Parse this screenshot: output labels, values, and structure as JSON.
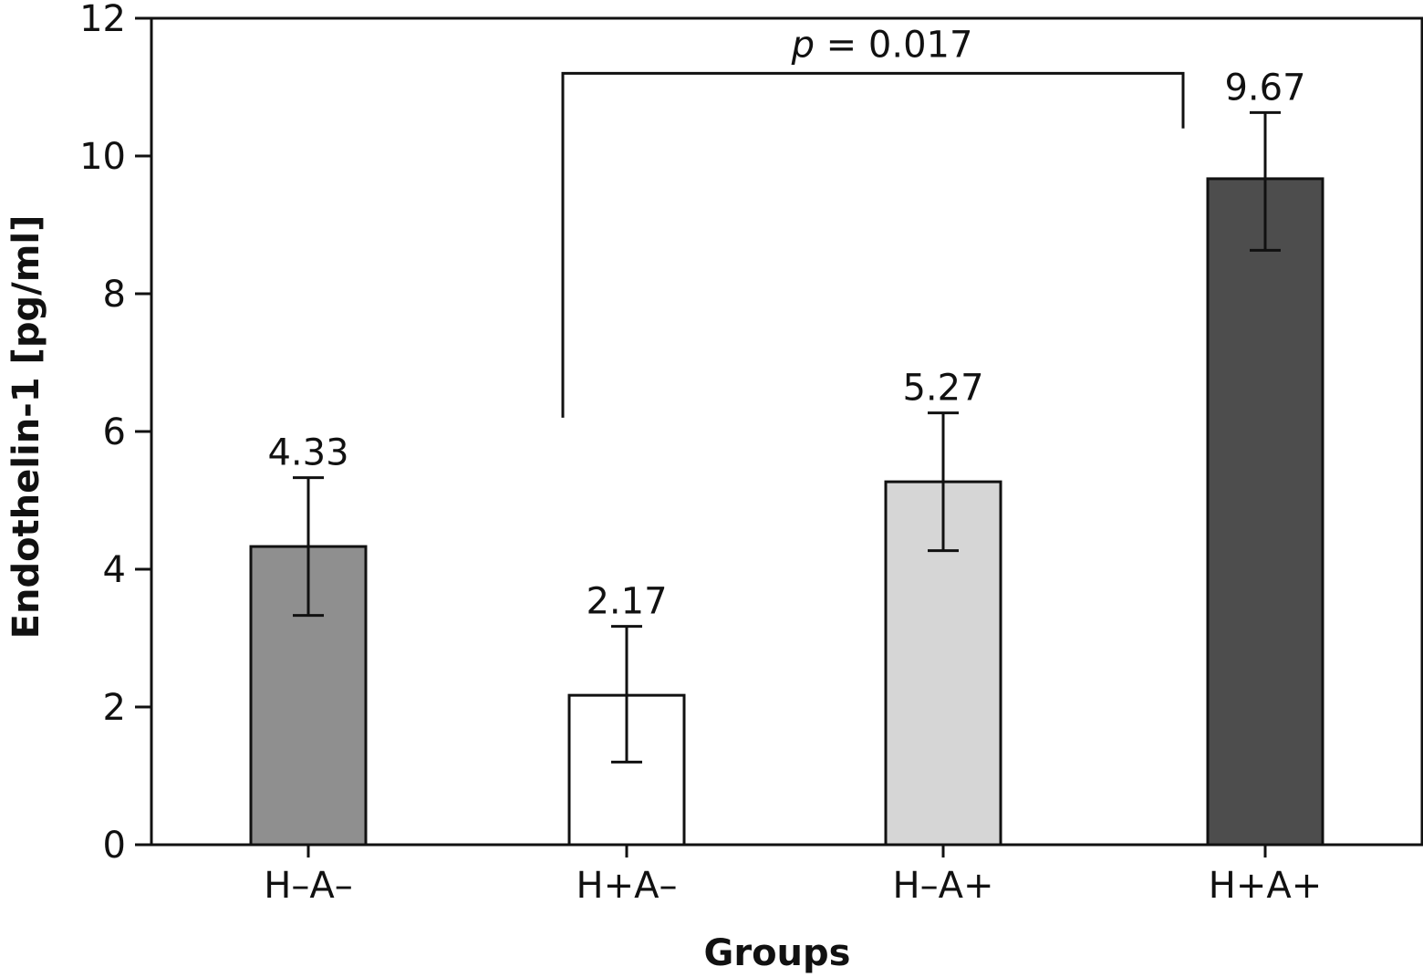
{
  "chart_data": {
    "type": "bar",
    "categories": [
      "H–A–",
      "H+A–",
      "H–A+",
      "H+A+"
    ],
    "values": [
      4.33,
      2.17,
      5.27,
      9.67
    ],
    "value_labels": [
      "4.33",
      "2.17",
      "5.27",
      "9.67"
    ],
    "error_upper": [
      5.33,
      3.17,
      6.27,
      10.63
    ],
    "error_lower": [
      3.33,
      1.2,
      4.27,
      8.63
    ],
    "bar_colors": [
      "#8f8f8f",
      "#ffffff",
      "#d6d6d6",
      "#4d4d4d"
    ],
    "xlabel": "Groups",
    "ylabel": "Endothelin-1 [pg/ml]",
    "ylim": [
      0,
      12
    ],
    "yticks": [
      0,
      2,
      4,
      6,
      8,
      10,
      12
    ],
    "grid": false,
    "annotation": {
      "p_symbol": "p",
      "p_text": " = 0.017",
      "from_category": 1,
      "to_category": 3,
      "bracket_y": 11.2,
      "left_end_y": 6.2,
      "right_end_y": 10.4
    }
  }
}
